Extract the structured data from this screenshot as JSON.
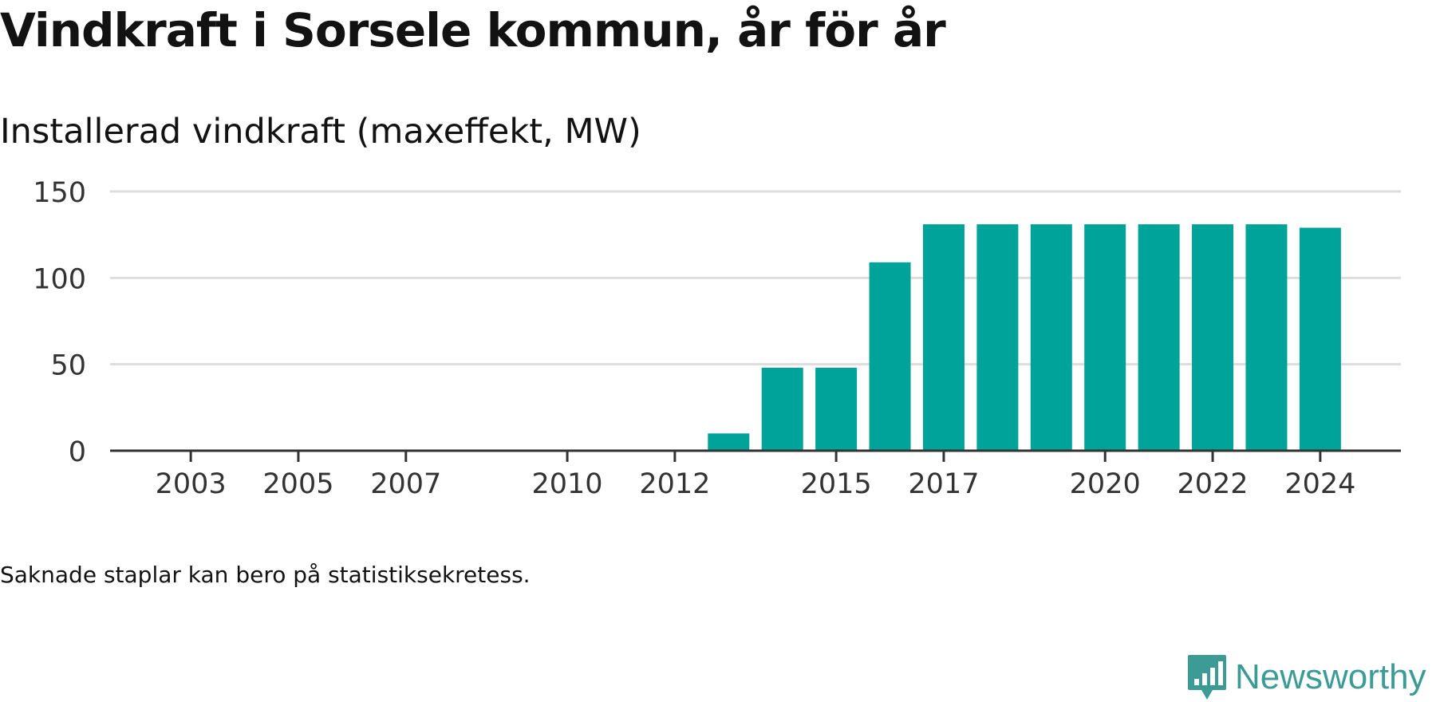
{
  "title": "Vindkraft i Sorsele kommun, år för år",
  "subtitle": "Installerad vindkraft (maxeffekt, MW)",
  "footnote": "Saknade staplar kan bero på statistiksekretess.",
  "logo": {
    "text": "Newsworthy",
    "icon": "bar-chart-speech-bubble-icon",
    "color": "#3d9b96"
  },
  "colors": {
    "bar": "#00a39a",
    "grid": "#dddddd",
    "axis": "#333333",
    "tick_text": "#333333"
  },
  "chart_data": {
    "type": "bar",
    "title": "Vindkraft i Sorsele kommun, år för år",
    "ylabel": "Installerad vindkraft (maxeffekt, MW)",
    "xlabel": "",
    "xlim": [
      2001.5,
      2025.5
    ],
    "ylim": [
      0,
      150
    ],
    "yticks": [
      0,
      50,
      100,
      150
    ],
    "xticks": [
      2003,
      2005,
      2007,
      2010,
      2012,
      2015,
      2017,
      2020,
      2022,
      2024
    ],
    "grid": true,
    "x": [
      2013,
      2014,
      2015,
      2016,
      2017,
      2018,
      2019,
      2020,
      2021,
      2022,
      2023,
      2024
    ],
    "values": [
      10,
      48,
      48,
      109,
      131,
      131,
      131,
      131,
      131,
      131,
      131,
      129
    ]
  }
}
